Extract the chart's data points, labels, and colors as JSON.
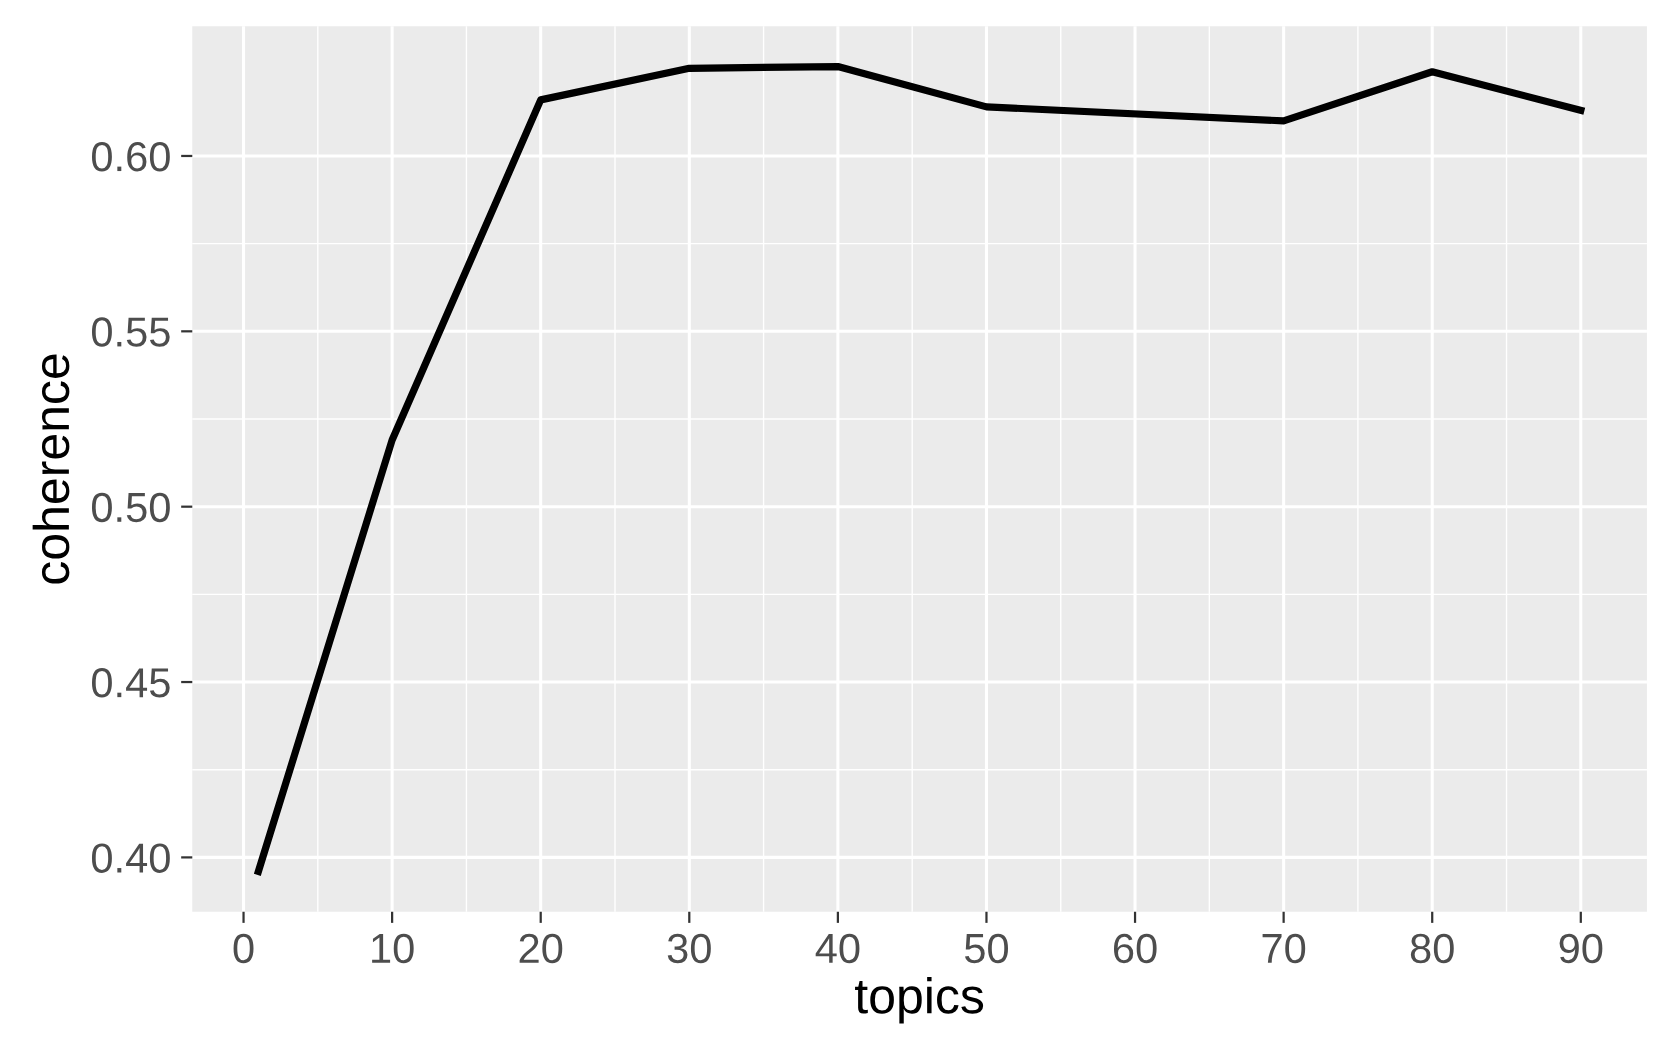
{
  "chart_data": {
    "type": "line",
    "xlabel": "topics",
    "ylabel": "coherence",
    "x": [
      1,
      10,
      20,
      30,
      40,
      50,
      70,
      80,
      90
    ],
    "series": [
      {
        "color": "#000000",
        "values": [
          0.396,
          0.519,
          0.616,
          0.625,
          0.6255,
          0.614,
          0.61,
          0.624,
          0.613
        ]
      }
    ],
    "xlim": [
      -3.45,
      94.45
    ],
    "ylim": [
      0.3845,
      0.637
    ],
    "xticks": [
      0,
      10,
      20,
      30,
      40,
      50,
      60,
      70,
      80,
      90
    ],
    "yticks": [
      {
        "value": 0.4,
        "label": "0.40"
      },
      {
        "value": 0.45,
        "label": "0.45"
      },
      {
        "value": 0.5,
        "label": "0.50"
      },
      {
        "value": 0.55,
        "label": "0.55"
      },
      {
        "value": 0.6,
        "label": "0.60"
      }
    ],
    "grid": true,
    "line_style": "solid"
  }
}
